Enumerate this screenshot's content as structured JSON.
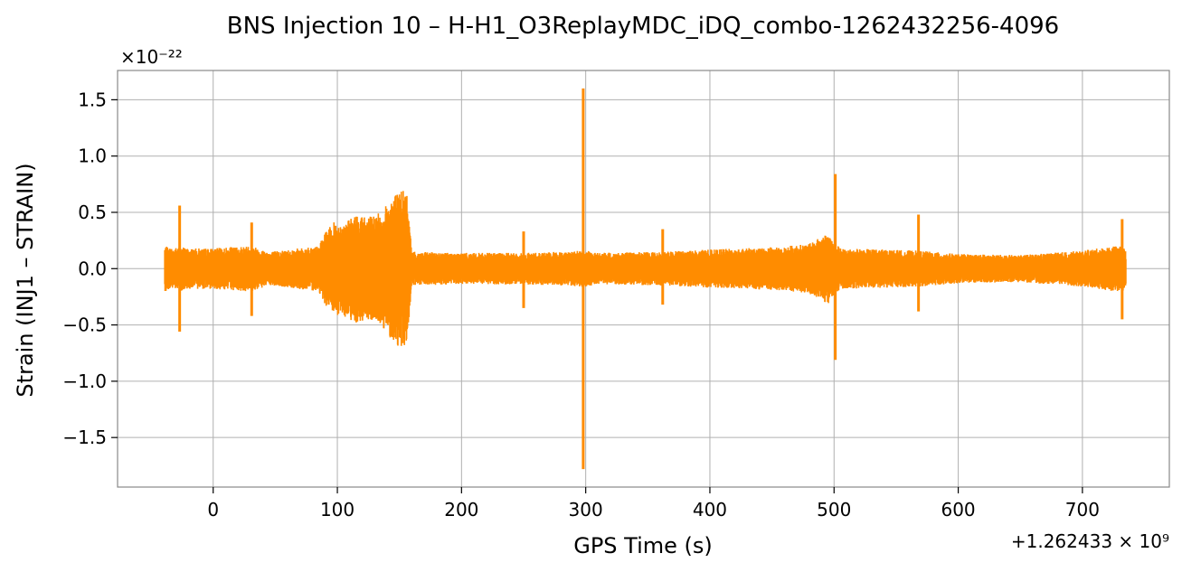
{
  "chart_data": {
    "type": "line",
    "title": "BNS Injection 10 – H-H1_O3ReplayMDC_iDQ_combo-1262432256-4096",
    "xlabel": "GPS Time (s)",
    "ylabel": "Strain (INJ1 – STRAIN)",
    "x_offset_label": "+1.262433 × 10⁹",
    "y_multiplier_label": "×10⁻²²",
    "xlim": [
      -77,
      770
    ],
    "ylim": [
      -1.94,
      1.76
    ],
    "x_ticks": [
      0,
      100,
      200,
      300,
      400,
      500,
      600,
      700
    ],
    "x_tick_labels": [
      "0",
      "100",
      "200",
      "300",
      "400",
      "500",
      "600",
      "700"
    ],
    "y_ticks": [
      1.5,
      1.0,
      0.5,
      0.0,
      -0.5,
      -1.0,
      -1.5
    ],
    "y_tick_labels": [
      "1.5",
      "1.0",
      "0.5",
      "0.0",
      "−0.5",
      "−1.0",
      "−1.5"
    ],
    "grid": true,
    "color": "#ff8c00",
    "series": [
      {
        "envelope_x": [
          -39,
          -32,
          -27,
          -20,
          0,
          25,
          32,
          45,
          60,
          85,
          90,
          98,
          105,
          115,
          125,
          135,
          145,
          150,
          156,
          160,
          200,
          250,
          280,
          296,
          300,
          310,
          362,
          400,
          450,
          480,
          495,
          500,
          505,
          540,
          568,
          600,
          650,
          700,
          725,
          733,
          735
        ],
        "envelope_upper": [
          0.2,
          0.18,
          0.2,
          0.18,
          0.18,
          0.2,
          0.2,
          0.15,
          0.17,
          0.2,
          0.32,
          0.42,
          0.4,
          0.48,
          0.46,
          0.5,
          0.65,
          0.7,
          0.68,
          0.15,
          0.14,
          0.14,
          0.15,
          0.16,
          0.16,
          0.14,
          0.15,
          0.17,
          0.19,
          0.22,
          0.32,
          0.24,
          0.18,
          0.17,
          0.16,
          0.13,
          0.12,
          0.16,
          0.2,
          0.2,
          0.15
        ],
        "envelope_lower": [
          -0.2,
          -0.18,
          -0.2,
          -0.18,
          -0.18,
          -0.2,
          -0.2,
          -0.15,
          -0.17,
          -0.2,
          -0.32,
          -0.42,
          -0.42,
          -0.48,
          -0.46,
          -0.5,
          -0.65,
          -0.7,
          -0.68,
          -0.15,
          -0.14,
          -0.14,
          -0.15,
          -0.16,
          -0.16,
          -0.14,
          -0.15,
          -0.17,
          -0.19,
          -0.22,
          -0.32,
          -0.24,
          -0.18,
          -0.17,
          -0.16,
          -0.13,
          -0.12,
          -0.16,
          -0.2,
          -0.2,
          -0.15
        ],
        "spikes": [
          {
            "x": -27,
            "max": 0.56,
            "min": -0.56
          },
          {
            "x": 31,
            "max": 0.41,
            "min": -0.42
          },
          {
            "x": 250,
            "max": 0.33,
            "min": -0.35
          },
          {
            "x": 298,
            "max": 1.6,
            "min": -1.78
          },
          {
            "x": 362,
            "max": 0.35,
            "min": -0.32
          },
          {
            "x": 501,
            "max": 0.84,
            "min": -0.81
          },
          {
            "x": 568,
            "max": 0.48,
            "min": -0.38
          },
          {
            "x": 732,
            "max": 0.44,
            "min": -0.45
          }
        ]
      }
    ]
  }
}
